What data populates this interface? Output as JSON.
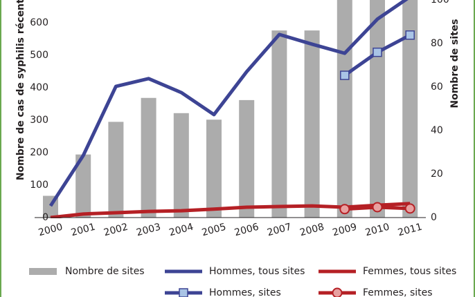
{
  "chart_data": {
    "type": "combo",
    "y_label": "Nombre de cas de syphilis récente",
    "y2_label": "Nombre de sites",
    "categories": [
      "2000",
      "2001",
      "2002",
      "2003",
      "2004",
      "2005",
      "2006",
      "2007",
      "2008",
      "2009",
      "2010",
      "2011"
    ],
    "ylim": [
      0,
      670
    ],
    "yticks": [
      0,
      100,
      200,
      300,
      400,
      500,
      600
    ],
    "y2lim": [
      0,
      100
    ],
    "y2ticks": [
      0,
      20,
      40,
      60,
      80,
      100
    ],
    "series": [
      {
        "name": "Nombre de sites",
        "type": "bar",
        "axis": "y2",
        "color": "#acacac",
        "values": [
          10,
          29,
          44,
          55,
          48,
          45,
          54,
          86,
          86,
          105,
          105,
          105
        ]
      },
      {
        "name": "Hommes, tous sites",
        "type": "line",
        "color": "#3d4494",
        "values": [
          36,
          191,
          404,
          428,
          385,
          317,
          449,
          564,
          534,
          506,
          611,
          680
        ]
      },
      {
        "name": "Femmes, tous sites",
        "type": "line",
        "color": "#b52025",
        "values": [
          0,
          11,
          15,
          19,
          21,
          26,
          32,
          34,
          36,
          32,
          38,
          43
        ]
      },
      {
        "name": "Hommes, sites",
        "type": "line",
        "color": "#3d4494",
        "marker": "square",
        "marker_color": "#a9c4e6",
        "values": [
          null,
          null,
          null,
          null,
          null,
          null,
          null,
          null,
          null,
          438,
          509,
          562
        ]
      },
      {
        "name": "Femmes, sites",
        "type": "line",
        "color": "#b52025",
        "marker": "circle",
        "marker_color": "#e8a0a0",
        "values": [
          null,
          null,
          null,
          null,
          null,
          null,
          null,
          null,
          null,
          26,
          32,
          28
        ]
      }
    ]
  }
}
